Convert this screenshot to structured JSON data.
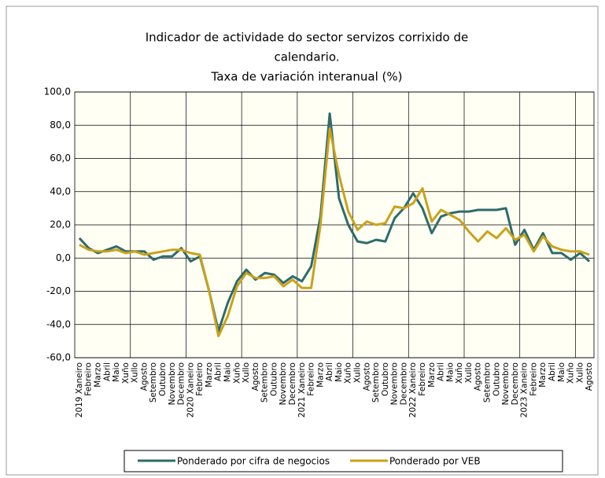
{
  "chart_data": {
    "type": "line",
    "title": [
      "Indicador de actividade do sector servizos corrixido de",
      "calendario.",
      "Taxa de variación interanual (%)"
    ],
    "categories": [
      "2019 Xaneiro",
      "Febreiro",
      "Marzo",
      "Abril",
      "Maio",
      "Xuño",
      "Xullo",
      "Agosto",
      "Setembro",
      "Outubro",
      "Novembro",
      "Decembro",
      "2020 Xaneiro",
      "Febreiro",
      "Marzo",
      "Abril",
      "Maio",
      "Xuño",
      "Xullo",
      "Agosto",
      "Setembro",
      "Outubro",
      "Novembro",
      "Decembro",
      "2021 Xaneiro",
      "Febreiro",
      "Marzo",
      "Abril",
      "Maio",
      "Xuño",
      "Xullo",
      "Agosto",
      "Setembro",
      "Outubro",
      "Novembro",
      "Decembro",
      "2022 Xaneiro",
      "Febreiro",
      "Marzo",
      "Abril",
      "Maio",
      "Xuño",
      "Xullo",
      "Agosto",
      "Setembro",
      "Outubro",
      "Novembro",
      "Decembro",
      "2023 Xaneiro",
      "Febreiro",
      "Marzo",
      "Abril",
      "Maio",
      "Xuño",
      "Xullo",
      "Agosto"
    ],
    "series": [
      {
        "name": "Ponderado por cifra de negocios",
        "color": "#2e6b6b",
        "values": [
          12,
          6,
          3,
          5,
          7,
          4,
          4,
          4,
          -1,
          1,
          1,
          6,
          -2,
          1,
          -20,
          -44,
          -27,
          -14,
          -7,
          -13,
          -9,
          -10,
          -15,
          -11,
          -14,
          -5,
          25,
          87,
          36,
          20,
          10,
          9,
          11,
          10,
          24,
          30,
          39,
          30,
          15,
          25,
          27,
          28,
          28,
          29,
          29,
          29,
          30,
          8,
          17,
          5,
          15,
          3,
          3,
          -1,
          3,
          -2
        ]
      },
      {
        "name": "Ponderado por VEB",
        "color": "#c9a21c",
        "values": [
          8,
          5,
          4,
          4,
          5,
          3,
          4,
          2,
          3,
          4,
          5,
          5,
          3,
          2,
          -20,
          -47,
          -35,
          -17,
          -9,
          -12,
          -12,
          -11,
          -17,
          -13,
          -18,
          -18,
          20,
          78,
          50,
          28,
          17,
          22,
          20,
          21,
          31,
          30,
          33,
          42,
          22,
          29,
          26,
          23,
          16,
          10,
          16,
          12,
          18,
          11,
          14,
          4,
          13,
          7,
          5,
          4,
          4,
          2
        ]
      }
    ],
    "ylim": [
      -60,
      100
    ],
    "yticks": [
      {
        "value": -60,
        "label": "-60,0"
      },
      {
        "value": -40,
        "label": "-40,0"
      },
      {
        "value": -20,
        "label": "-20,0"
      },
      {
        "value": 0,
        "label": "0,0"
      },
      {
        "value": 20,
        "label": "20,0"
      },
      {
        "value": 40,
        "label": "40,0"
      },
      {
        "value": 60,
        "label": "60,0"
      },
      {
        "value": 80,
        "label": "80,0"
      },
      {
        "value": 100,
        "label": "100,0"
      }
    ],
    "grid": true
  }
}
